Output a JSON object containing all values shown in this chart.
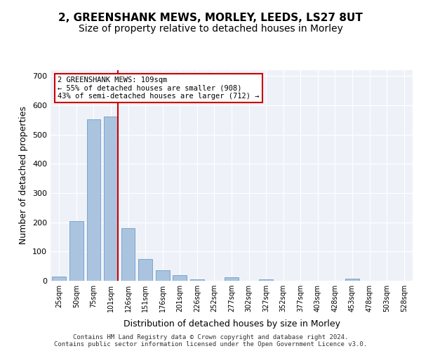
{
  "title": "2, GREENSHANK MEWS, MORLEY, LEEDS, LS27 8UT",
  "subtitle": "Size of property relative to detached houses in Morley",
  "xlabel": "Distribution of detached houses by size in Morley",
  "ylabel": "Number of detached properties",
  "categories": [
    "25sqm",
    "50sqm",
    "75sqm",
    "101sqm",
    "126sqm",
    "151sqm",
    "176sqm",
    "201sqm",
    "226sqm",
    "252sqm",
    "277sqm",
    "302sqm",
    "327sqm",
    "352sqm",
    "377sqm",
    "403sqm",
    "428sqm",
    "453sqm",
    "478sqm",
    "503sqm",
    "528sqm"
  ],
  "values": [
    15,
    204,
    553,
    562,
    181,
    75,
    35,
    20,
    5,
    0,
    12,
    0,
    6,
    0,
    0,
    0,
    0,
    8,
    0,
    0,
    0
  ],
  "bar_color": "#aac4e0",
  "bar_edgecolor": "#5a8fc0",
  "property_size": 109,
  "property_bin_index": 3,
  "annotation_text": "2 GREENSHANK MEWS: 109sqm\n← 55% of detached houses are smaller (908)\n43% of semi-detached houses are larger (712) →",
  "vline_color": "#cc0000",
  "vline_x": 3,
  "annotation_box_edgecolor": "#cc0000",
  "ylim": [
    0,
    720
  ],
  "yticks": [
    0,
    100,
    200,
    300,
    400,
    500,
    600,
    700
  ],
  "background_color": "#eef2f8",
  "footer_line1": "Contains HM Land Registry data © Crown copyright and database right 2024.",
  "footer_line2": "Contains public sector information licensed under the Open Government Licence v3.0.",
  "title_fontsize": 11,
  "subtitle_fontsize": 10,
  "xlabel_fontsize": 9,
  "ylabel_fontsize": 9
}
